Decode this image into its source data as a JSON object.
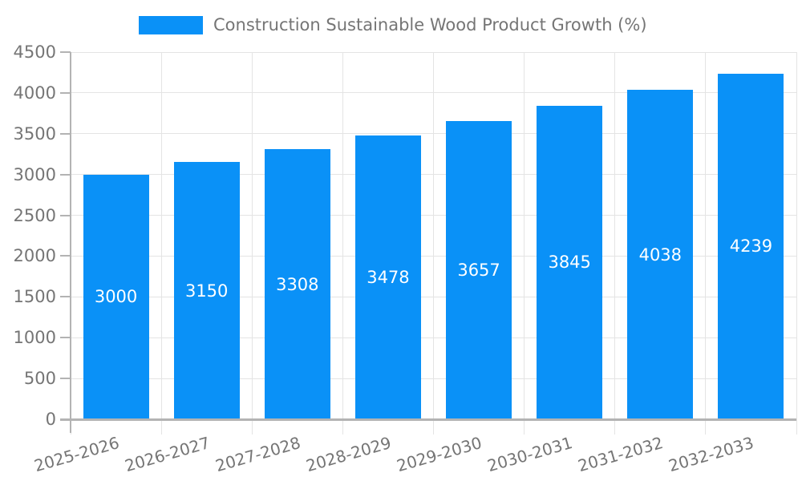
{
  "chart_data": {
    "type": "bar",
    "title": "Construction Sustainable Wood Product Growth (%)",
    "legend_entries": [
      "Construction Sustainable Wood Product Growth (%)"
    ],
    "legend_position": "top",
    "categories": [
      "2025-2026",
      "2026-2027",
      "2027-2028",
      "2028-2029",
      "2029-2030",
      "2030-2031",
      "2031-2032",
      "2032-2033"
    ],
    "values": [
      3000,
      3150,
      3308,
      3478,
      3657,
      3845,
      4038,
      4239
    ],
    "bar_value_labels": [
      "3000",
      "3150",
      "3308",
      "3478",
      "3657",
      "3845",
      "4038",
      "4239"
    ],
    "xlabel": "",
    "ylabel": "",
    "ylim": [
      0,
      4500
    ],
    "yticks": [
      0,
      500,
      1000,
      1500,
      2000,
      2500,
      3000,
      3500,
      4000,
      4500
    ],
    "grid": "horizontal-and-vertical",
    "x_tick_label_rotation_deg": -16,
    "colors": {
      "bar": "#0a91f7",
      "bar_value_label": "#ffffff",
      "axis": "#b3b3b3",
      "grid": "#e4e4e4",
      "text": "#757575",
      "background": "#ffffff"
    }
  }
}
